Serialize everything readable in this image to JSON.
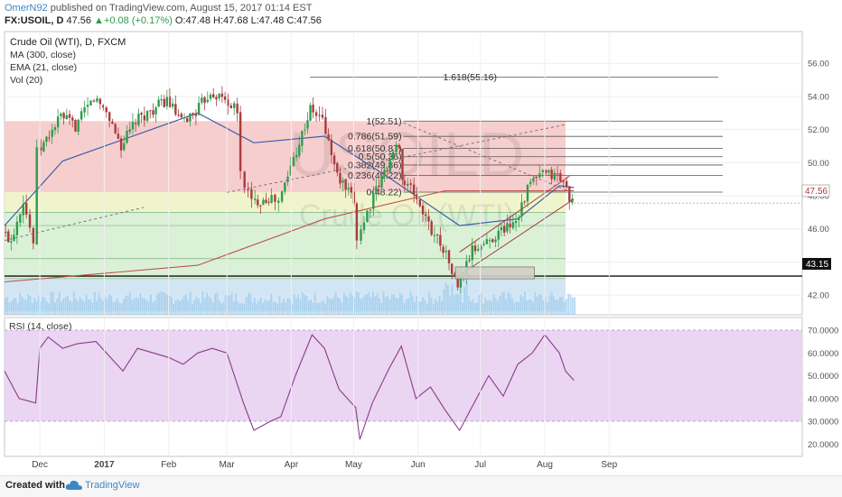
{
  "header": {
    "author": "OmerN92",
    "published_text": "published on TradingView.com, August 15, 2017 01:14 EST",
    "symbol_line": "FX:USOIL, D",
    "price": "47.56",
    "change": "+0.08 (+0.17%)",
    "ohlc": "O:47.48 H:47.68 L:47.48 C:47.56"
  },
  "legend": {
    "title": "Crude Oil (WTI), D, FXCM",
    "ma": "MA (300, close)",
    "ema": "EMA (21, close)",
    "vol": "Vol (20)"
  },
  "watermark": {
    "symbol": "USOILD",
    "name": "Crude Oil (WTI)"
  },
  "price_labels": {
    "last": "47.56",
    "support": "43.15"
  },
  "rsi_label": "RSI (14, close)",
  "footer": {
    "created_with": "Created with",
    "brand": "TradingView"
  },
  "colors": {
    "up": "#2f9c4a",
    "down": "#a93b3b",
    "ma300": "#c0504d",
    "ema21": "#3b5fa8",
    "rsi": "#8a3b8a",
    "rsi_band": "#ead5f3",
    "fib_red": "#f6c9c9",
    "fib_green": "#d6f0d3",
    "fib_blue": "#cfe3f6",
    "fib_yellow": "#eef3c7",
    "volume": "#9ccbe9"
  },
  "chart_data": [
    {
      "type": "candlestick",
      "title": "Crude Oil (WTI), D, FXCM",
      "xlabel": "",
      "ylabel": "",
      "ylim": [
        40.8,
        57.0
      ],
      "x_ticks": [
        "Dec",
        "2017",
        "Feb",
        "Mar",
        "Apr",
        "May",
        "Jun",
        "Jul",
        "Aug",
        "Sep"
      ],
      "y_ticks": [
        "42.00",
        "44.00",
        "46.00",
        "48.00",
        "50.00",
        "52.00",
        "54.00",
        "56.00"
      ],
      "close_series": [
        {
          "date": "2016-11-14",
          "close": 45.8
        },
        {
          "date": "2016-11-18",
          "close": 45.3
        },
        {
          "date": "2016-11-24",
          "close": 47.8
        },
        {
          "date": "2016-11-29",
          "close": 45.2
        },
        {
          "date": "2016-12-01",
          "close": 50.6
        },
        {
          "date": "2016-12-05",
          "close": 51.4
        },
        {
          "date": "2016-12-12",
          "close": 52.8
        },
        {
          "date": "2016-12-19",
          "close": 52.2
        },
        {
          "date": "2016-12-28",
          "close": 53.9
        },
        {
          "date": "2017-01-03",
          "close": 53.1
        },
        {
          "date": "2017-01-10",
          "close": 51.0
        },
        {
          "date": "2017-01-17",
          "close": 52.5
        },
        {
          "date": "2017-01-24",
          "close": 53.1
        },
        {
          "date": "2017-02-01",
          "close": 53.8
        },
        {
          "date": "2017-02-08",
          "close": 52.4
        },
        {
          "date": "2017-02-15",
          "close": 53.1
        },
        {
          "date": "2017-02-22",
          "close": 54.3
        },
        {
          "date": "2017-03-01",
          "close": 53.8
        },
        {
          "date": "2017-03-07",
          "close": 53.1
        },
        {
          "date": "2017-03-09",
          "close": 49.3
        },
        {
          "date": "2017-03-14",
          "close": 47.6
        },
        {
          "date": "2017-03-22",
          "close": 47.9
        },
        {
          "date": "2017-03-27",
          "close": 47.6
        },
        {
          "date": "2017-04-03",
          "close": 50.3
        },
        {
          "date": "2017-04-11",
          "close": 53.2
        },
        {
          "date": "2017-04-17",
          "close": 52.6
        },
        {
          "date": "2017-04-24",
          "close": 49.2
        },
        {
          "date": "2017-05-02",
          "close": 47.6
        },
        {
          "date": "2017-05-04",
          "close": 45.5
        },
        {
          "date": "2017-05-10",
          "close": 47.5
        },
        {
          "date": "2017-05-18",
          "close": 49.8
        },
        {
          "date": "2017-05-24",
          "close": 51.2
        },
        {
          "date": "2017-05-25",
          "close": 48.9
        },
        {
          "date": "2017-05-31",
          "close": 48.2
        },
        {
          "date": "2017-06-07",
          "close": 46.2
        },
        {
          "date": "2017-06-14",
          "close": 44.9
        },
        {
          "date": "2017-06-21",
          "close": 42.5
        },
        {
          "date": "2017-06-28",
          "close": 44.7
        },
        {
          "date": "2017-07-05",
          "close": 45.2
        },
        {
          "date": "2017-07-12",
          "close": 45.9
        },
        {
          "date": "2017-07-19",
          "close": 46.6
        },
        {
          "date": "2017-07-26",
          "close": 48.8
        },
        {
          "date": "2017-08-01",
          "close": 49.3
        },
        {
          "date": "2017-08-08",
          "close": 49.2
        },
        {
          "date": "2017-08-11",
          "close": 48.8
        },
        {
          "date": "2017-08-15",
          "close": 47.56
        }
      ],
      "series": [
        {
          "name": "MA (300, close)",
          "points": [
            {
              "date": "2016-11-14",
              "value": 42.8
            },
            {
              "date": "2017-02-15",
              "value": 43.8
            },
            {
              "date": "2017-04-17",
              "value": 46.6
            },
            {
              "date": "2017-06-14",
              "value": 48.3
            },
            {
              "date": "2017-08-15",
              "value": 48.3
            }
          ]
        },
        {
          "name": "EMA (21, close)",
          "points": [
            {
              "date": "2016-11-14",
              "value": 46.2
            },
            {
              "date": "2016-12-12",
              "value": 50.1
            },
            {
              "date": "2017-02-15",
              "value": 53.0
            },
            {
              "date": "2017-03-14",
              "value": 51.2
            },
            {
              "date": "2017-04-17",
              "value": 51.6
            },
            {
              "date": "2017-05-18",
              "value": 49.1
            },
            {
              "date": "2017-06-21",
              "value": 46.2
            },
            {
              "date": "2017-07-19",
              "value": 46.6
            },
            {
              "date": "2017-08-08",
              "value": 48.6
            },
            {
              "date": "2017-08-15",
              "value": 48.5
            }
          ]
        }
      ],
      "fibonacci": [
        {
          "label": "1.618(55.16)",
          "value": 55.16
        },
        {
          "label": "1(52.51)",
          "value": 52.51
        },
        {
          "label": "0.786(51.59)",
          "value": 51.59
        },
        {
          "label": "0.618(50.87)",
          "value": 50.87
        },
        {
          "label": "0.5(50.36)",
          "value": 50.36
        },
        {
          "label": "0.382(49.86)",
          "value": 49.86
        },
        {
          "label": "0.236(49.22)",
          "value": 49.22
        },
        {
          "label": "0(48.22)",
          "value": 48.22
        }
      ],
      "horizontal_levels": [
        {
          "label": "43.15",
          "value": 43.15
        }
      ],
      "last_price": 47.56
    },
    {
      "type": "line",
      "title": "RSI (14, close)",
      "xlabel": "",
      "ylabel": "",
      "ylim": [
        15,
        72
      ],
      "y_ticks": [
        "20.0000",
        "30.0000",
        "40.0000",
        "50.0000",
        "60.0000",
        "70.0000"
      ],
      "band": [
        30,
        70
      ],
      "series": [
        {
          "name": "RSI (14, close)",
          "points": [
            {
              "date": "2016-11-14",
              "value": 52
            },
            {
              "date": "2016-11-21",
              "value": 40
            },
            {
              "date": "2016-11-29",
              "value": 38
            },
            {
              "date": "2016-12-01",
              "value": 62
            },
            {
              "date": "2016-12-05",
              "value": 67
            },
            {
              "date": "2016-12-12",
              "value": 62
            },
            {
              "date": "2016-12-19",
              "value": 64
            },
            {
              "date": "2016-12-28",
              "value": 65
            },
            {
              "date": "2017-01-10",
              "value": 52
            },
            {
              "date": "2017-01-17",
              "value": 62
            },
            {
              "date": "2017-02-01",
              "value": 58
            },
            {
              "date": "2017-02-08",
              "value": 55
            },
            {
              "date": "2017-02-15",
              "value": 60
            },
            {
              "date": "2017-02-22",
              "value": 62
            },
            {
              "date": "2017-03-01",
              "value": 60
            },
            {
              "date": "2017-03-09",
              "value": 38
            },
            {
              "date": "2017-03-14",
              "value": 26
            },
            {
              "date": "2017-03-22",
              "value": 30
            },
            {
              "date": "2017-03-27",
              "value": 32
            },
            {
              "date": "2017-04-03",
              "value": 50
            },
            {
              "date": "2017-04-11",
              "value": 68
            },
            {
              "date": "2017-04-17",
              "value": 62
            },
            {
              "date": "2017-04-24",
              "value": 44
            },
            {
              "date": "2017-05-02",
              "value": 36
            },
            {
              "date": "2017-05-04",
              "value": 22
            },
            {
              "date": "2017-05-10",
              "value": 38
            },
            {
              "date": "2017-05-18",
              "value": 53
            },
            {
              "date": "2017-05-24",
              "value": 63
            },
            {
              "date": "2017-05-31",
              "value": 40
            },
            {
              "date": "2017-06-07",
              "value": 45
            },
            {
              "date": "2017-06-14",
              "value": 35
            },
            {
              "date": "2017-06-21",
              "value": 26
            },
            {
              "date": "2017-06-28",
              "value": 38
            },
            {
              "date": "2017-07-05",
              "value": 50
            },
            {
              "date": "2017-07-12",
              "value": 41
            },
            {
              "date": "2017-07-19",
              "value": 55
            },
            {
              "date": "2017-07-26",
              "value": 60
            },
            {
              "date": "2017-08-01",
              "value": 68
            },
            {
              "date": "2017-08-08",
              "value": 60
            },
            {
              "date": "2017-08-11",
              "value": 52
            },
            {
              "date": "2017-08-15",
              "value": 48
            }
          ]
        }
      ]
    }
  ]
}
